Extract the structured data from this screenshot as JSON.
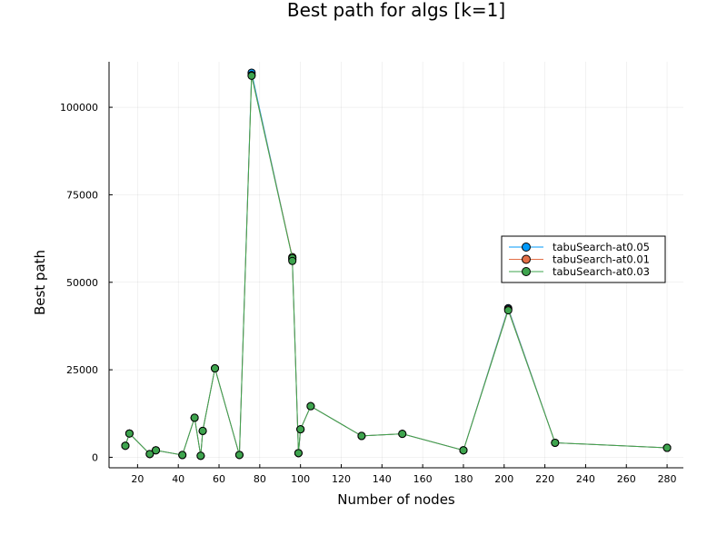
{
  "chart_data": {
    "type": "line",
    "title": "Best path for algs [k=1]",
    "xlabel": "Number of nodes",
    "ylabel": "Best path",
    "xlim": [
      6,
      288
    ],
    "ylim": [
      -3000,
      113000
    ],
    "x_ticks": [
      20,
      40,
      60,
      80,
      100,
      120,
      140,
      160,
      180,
      200,
      220,
      240,
      260,
      280
    ],
    "y_ticks": [
      0,
      25000,
      50000,
      75000,
      100000
    ],
    "grid": true,
    "legend_position": "right",
    "markers": true,
    "x": [
      14,
      16,
      26,
      29,
      42,
      48,
      51,
      52,
      58,
      70,
      76,
      96,
      96,
      99,
      100,
      105,
      130,
      150,
      180,
      202,
      225,
      280
    ],
    "series": [
      {
        "name": "tabuSearch-at0.05",
        "color": "#009AFA",
        "values": [
          3300,
          6800,
          940,
          2000,
          650,
          11300,
          430,
          7540,
          25400,
          675,
          109900,
          57100,
          56600,
          1200,
          8000,
          14600,
          6100,
          6700,
          2000,
          42600,
          4150,
          2700
        ]
      },
      {
        "name": "tabuSearch-at0.01",
        "color": "#E36F47",
        "values": [
          3300,
          6800,
          940,
          2000,
          650,
          11300,
          430,
          7540,
          25400,
          675,
          109200,
          57200,
          56400,
          1200,
          8000,
          14600,
          6100,
          6700,
          2000,
          42300,
          4150,
          2700
        ]
      },
      {
        "name": "tabuSearch-at0.03",
        "color": "#3EA44E",
        "values": [
          3300,
          6800,
          940,
          2000,
          650,
          11300,
          430,
          7540,
          25400,
          675,
          109000,
          56900,
          56100,
          1200,
          8000,
          14600,
          6100,
          6700,
          2000,
          42000,
          4150,
          2700
        ]
      }
    ]
  }
}
